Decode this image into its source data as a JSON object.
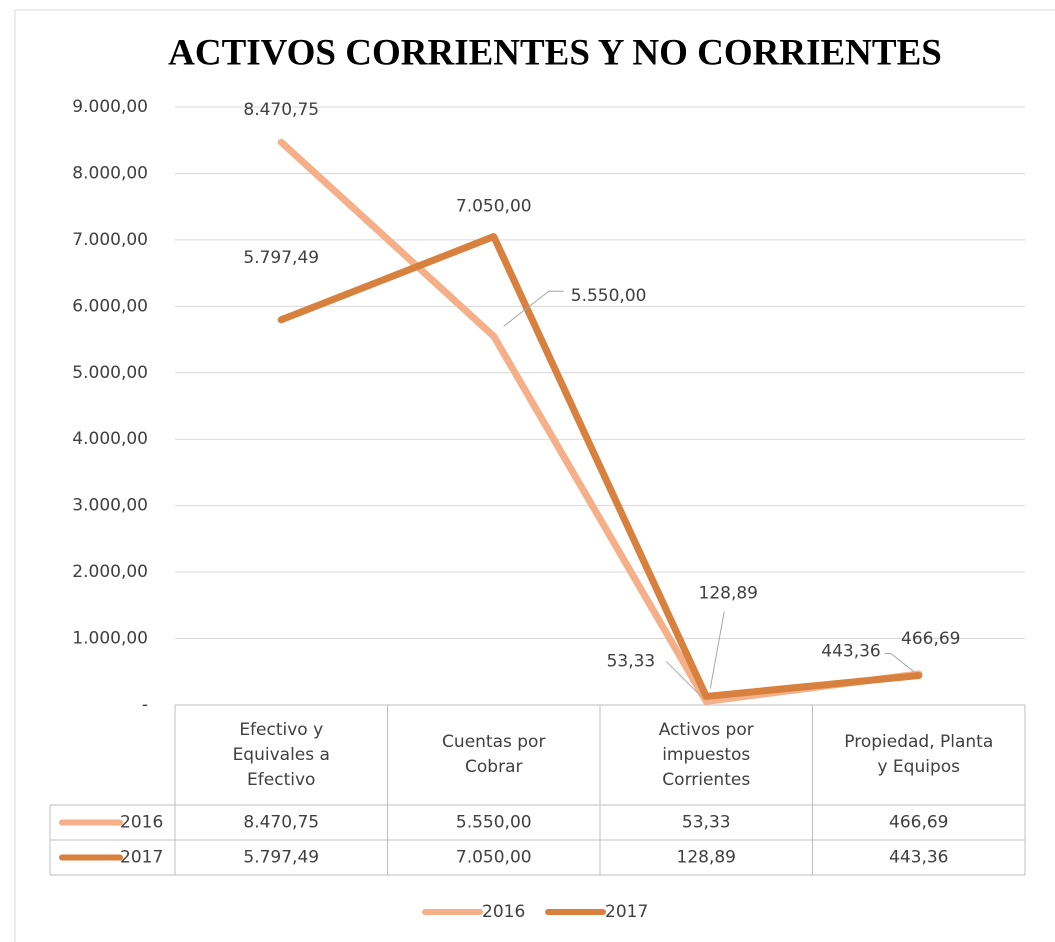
{
  "chart_data": {
    "type": "line",
    "title": "ACTIVOS CORRIENTES Y NO CORRIENTES",
    "categories": [
      "Efectivo y Equivales a Efectivo",
      "Cuentas por Cobrar",
      "Activos por impuestos Corrientes",
      "Propiedad, Planta y Equipos"
    ],
    "series": [
      {
        "name": "2016",
        "color": "#f6b089",
        "values": [
          8470.75,
          5550.0,
          53.33,
          466.69
        ],
        "value_labels": [
          "8.470,75",
          "5.550,00",
          "53,33",
          "466,69"
        ]
      },
      {
        "name": "2017",
        "color": "#d8803e",
        "values": [
          5797.49,
          7050.0,
          128.89,
          443.36
        ],
        "value_labels": [
          "5.797,49",
          "7.050,00",
          "128,89",
          "443,36"
        ]
      }
    ],
    "ylim": [
      0,
      9000
    ],
    "yticks": [
      {
        "value": 0,
        "label": "-"
      },
      {
        "value": 1000,
        "label": "1.000,00"
      },
      {
        "value": 2000,
        "label": "2.000,00"
      },
      {
        "value": 3000,
        "label": "3.000,00"
      },
      {
        "value": 4000,
        "label": "4.000,00"
      },
      {
        "value": 5000,
        "label": "5.000,00"
      },
      {
        "value": 6000,
        "label": "6.000,00"
      },
      {
        "value": 7000,
        "label": "7.000,00"
      },
      {
        "value": 8000,
        "label": "8.000,00"
      },
      {
        "value": 9000,
        "label": "9.000,00"
      }
    ],
    "grid": true,
    "legend": "bottom",
    "data_table": true
  }
}
